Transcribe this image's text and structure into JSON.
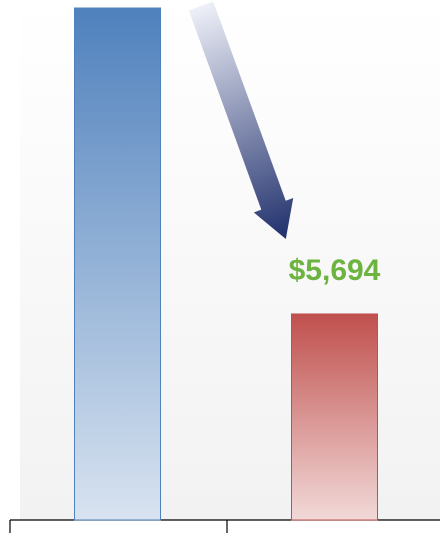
{
  "chart_data": {
    "type": "bar",
    "categories": [
      null,
      null
    ],
    "values": [
      14150,
      5694
    ],
    "value_labels": [
      null,
      "$5,694"
    ],
    "colors": [
      "#4f81bd",
      "#c0504d"
    ],
    "label_color": "#6db33f"
  }
}
